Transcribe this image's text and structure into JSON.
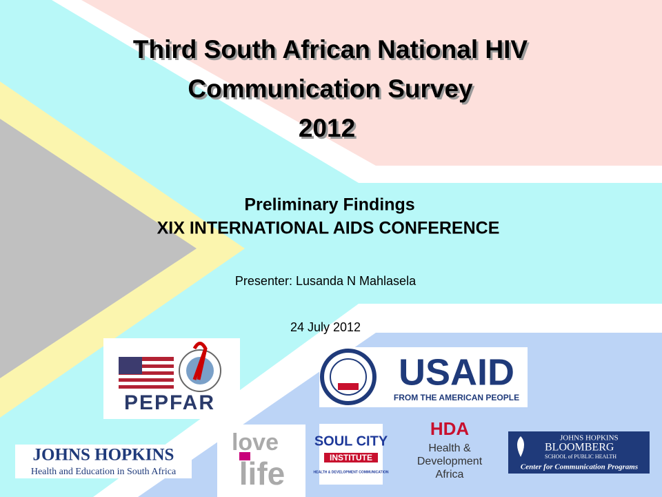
{
  "slide": {
    "title": [
      "Third South African National HIV",
      "Communication Survey",
      "2012"
    ],
    "subtitle": "Preliminary Findings",
    "conference": "XIX INTERNATIONAL AIDS CONFERENCE",
    "presenter": "Presenter: Lusanda N Mahlasela",
    "date": "24 July 2012",
    "logos": {
      "pepfar": "PEPFAR",
      "usaid": "USAID",
      "usaid_tagline": "FROM THE AMERICAN PEOPLE",
      "jh": "JOHNS HOPKINS",
      "jh_tagline": "Health and Education in South Africa",
      "lovelife_top": "love",
      "lovelife_bottom": "life",
      "soulcity": "SOUL CITY",
      "soulcity_institute": "INSTITUTE",
      "soulcity_tagline": "HEALTH & DEVELOPMENT COMMUNICATION",
      "hda": "HDA",
      "hda_name": [
        "Health &",
        "Development",
        "Africa"
      ],
      "jhb_name": [
        "JOHNS HOPKINS",
        "BLOOMBERG",
        "SCHOOL of PUBLIC HEALTH"
      ],
      "jhb_tagline": "Center for Communication Programs"
    }
  }
}
